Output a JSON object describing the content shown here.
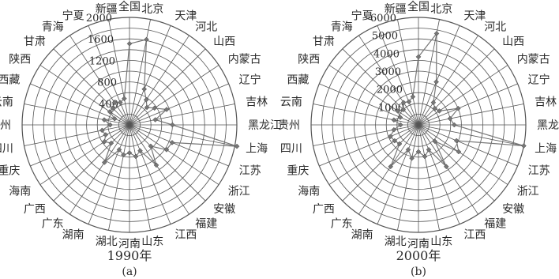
{
  "chart_data": [
    {
      "type": "radar",
      "caption": "1990年",
      "panel_label": "(a)",
      "rmax": 2000,
      "ticks": [
        400,
        800,
        1200,
        1600,
        2000
      ],
      "tick_labels": [
        "400",
        "800",
        "1200",
        "1600",
        "2000"
      ],
      "categories": [
        "全国",
        "北京",
        "天津",
        "河北",
        "山西",
        "内蒙古",
        "辽宁",
        "吉林",
        "黑龙江",
        "上海",
        "江苏",
        "浙江",
        "安徽",
        "福建",
        "江西",
        "山东",
        "河南",
        "湖北",
        "湖南",
        "广东",
        "广西",
        "海南",
        "重庆",
        "四川",
        "贵州",
        "云南",
        "西藏",
        "陕西",
        "甘肃",
        "青海",
        "宁夏",
        "新疆"
      ],
      "values": [
        1510,
        1620,
        720,
        560,
        460,
        560,
        750,
        490,
        800,
        2400,
        860,
        830,
        560,
        900,
        520,
        600,
        520,
        570,
        500,
        840,
        480,
        560,
        480,
        520,
        360,
        480,
        300,
        440,
        440,
        500,
        450,
        500
      ],
      "color": "#777777",
      "grid": true
    },
    {
      "type": "radar",
      "caption": "2000年",
      "panel_label": "(b)",
      "rmax": 6000,
      "ticks": [
        1000,
        2000,
        3000,
        4000,
        5000,
        6000
      ],
      "tick_labels": [
        "1000",
        "2000",
        "3000",
        "4000",
        "5000",
        "6000"
      ],
      "categories": [
        "全国",
        "北京",
        "天津",
        "河北",
        "山西",
        "内蒙古",
        "辽宁",
        "吉林",
        "黑龙江",
        "上海",
        "江苏",
        "浙江",
        "安徽",
        "福建",
        "江西",
        "山东",
        "河南",
        "湖北",
        "湖南",
        "广东",
        "广西",
        "海南",
        "重庆",
        "四川",
        "贵州",
        "云南",
        "西藏",
        "陕西",
        "甘肃",
        "青海",
        "宁夏",
        "新疆"
      ],
      "values": [
        3800,
        5200,
        2600,
        1500,
        1300,
        1400,
        2400,
        1800,
        2000,
        6000,
        2300,
        2700,
        1300,
        2800,
        1500,
        1800,
        1500,
        1900,
        1500,
        2800,
        1500,
        1600,
        1700,
        1400,
        1000,
        1400,
        1100,
        1400,
        1200,
        1500,
        1400,
        1600
      ],
      "color": "#777777",
      "grid": true
    }
  ]
}
